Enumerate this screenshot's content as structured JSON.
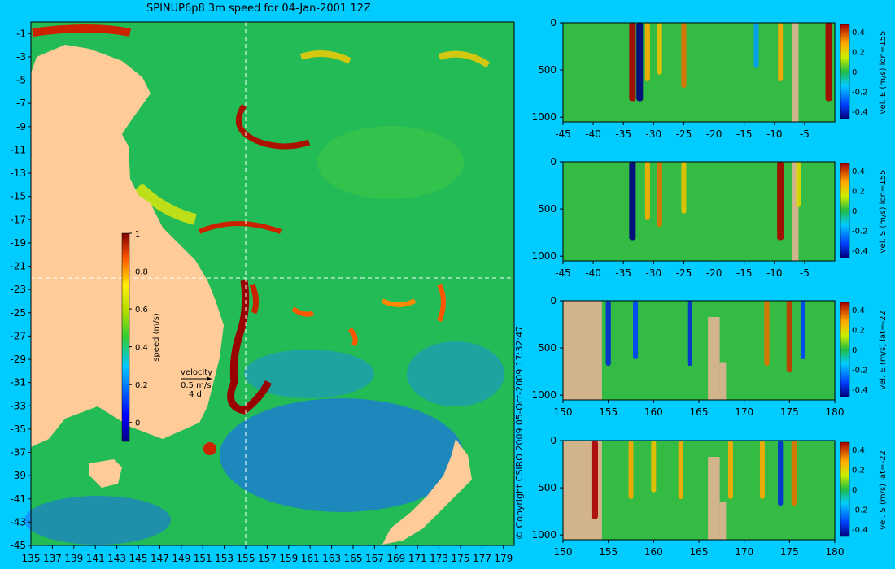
{
  "title": "SPINUP6p8 3m speed for 04-Jan-2001 12Z",
  "copyright": "© Copyright CSIRO 2009   05-Oct-2009 17:32:47",
  "colors": {
    "background": "#00ccff",
    "land": "#ffcc99",
    "section_land": "#d2b48c"
  },
  "chart_data": [
    {
      "type": "heatmap",
      "variable": "speed (m/s)",
      "x_ticks": [
        "135",
        "137",
        "139",
        "141",
        "143",
        "145",
        "147",
        "149",
        "151",
        "153",
        "155",
        "157",
        "159",
        "161",
        "163",
        "165",
        "167",
        "169",
        "171",
        "173",
        "175",
        "177",
        "179"
      ],
      "y_ticks": [
        "-1",
        "-3",
        "-5",
        "-7",
        "-9",
        "-11",
        "-13",
        "-15",
        "-17",
        "-19",
        "-21",
        "-23",
        "-25",
        "-27",
        "-29",
        "-31",
        "-33",
        "-35",
        "-37",
        "-39",
        "-41",
        "-43",
        "-45"
      ],
      "xlim": [
        135,
        180
      ],
      "ylim": [
        -45,
        0
      ],
      "crosshair": {
        "lon": 155,
        "lat": -22
      },
      "colorbar": {
        "label": "speed (m/s)",
        "ticks": [
          "0",
          "0.2",
          "0.4",
          "0.6",
          "0.8",
          "1"
        ],
        "range": [
          -0.1,
          1
        ]
      },
      "velocity_legend": {
        "title": "velocity",
        "scale": "0.5 m/s",
        "duration": "4 d"
      }
    },
    {
      "type": "heatmap",
      "section": "vel. E (m/s) lon=155",
      "x_ticks": [
        "-45",
        "-40",
        "-35",
        "-30",
        "-25",
        "-20",
        "-15",
        "-10",
        "-5"
      ],
      "y_ticks": [
        "0",
        "500",
        "1000"
      ],
      "xlim": [
        -45,
        0
      ],
      "ylim": [
        1050,
        0
      ],
      "colorbar_ticks": [
        "0.4",
        "0.2",
        "0",
        "-0.2",
        "-0.4"
      ],
      "features": [
        {
          "x": -33.5,
          "value": 0.45
        },
        {
          "x": -32.3,
          "value": -0.45
        },
        {
          "x": -31,
          "value": 0.3
        },
        {
          "x": -29,
          "value": 0.25
        },
        {
          "x": -25,
          "value": 0.35
        },
        {
          "x": -13,
          "value": -0.2
        },
        {
          "x": -9,
          "value": 0.3
        },
        {
          "x": -1,
          "value": 0.45
        }
      ]
    },
    {
      "type": "heatmap",
      "section": "vel. S (m/s) lon=155",
      "x_ticks": [
        "-45",
        "-40",
        "-35",
        "-30",
        "-25",
        "-20",
        "-15",
        "-10",
        "-5"
      ],
      "y_ticks": [
        "0",
        "500",
        "1000"
      ],
      "xlim": [
        -45,
        0
      ],
      "ylim": [
        1050,
        0
      ],
      "colorbar_ticks": [
        "0.4",
        "0.2",
        "0",
        "-0.2",
        "-0.4"
      ],
      "features": [
        {
          "x": -33.5,
          "value": -0.45
        },
        {
          "x": -31,
          "value": 0.3
        },
        {
          "x": -29,
          "value": 0.35
        },
        {
          "x": -25,
          "value": 0.25
        },
        {
          "x": -9,
          "value": 0.45
        },
        {
          "x": -6,
          "value": 0.2
        }
      ]
    },
    {
      "type": "heatmap",
      "section": "vel. E (m/s) lat=-22",
      "x_ticks": [
        "150",
        "155",
        "160",
        "165",
        "170",
        "175",
        "180"
      ],
      "y_ticks": [
        "0",
        "500",
        "1000"
      ],
      "xlim": [
        150,
        180
      ],
      "ylim": [
        1050,
        0
      ],
      "colorbar_ticks": [
        "0.4",
        "0.2",
        "0",
        "-0.2",
        "-0.4"
      ],
      "features": [
        {
          "x": 155,
          "value": -0.35
        },
        {
          "x": 158,
          "value": -0.3
        },
        {
          "x": 164,
          "value": -0.35
        },
        {
          "x": 172.5,
          "value": 0.35
        },
        {
          "x": 175,
          "value": 0.4
        },
        {
          "x": 176.5,
          "value": -0.3
        }
      ]
    },
    {
      "type": "heatmap",
      "section": "vel. S (m/s) lat=-22",
      "x_ticks": [
        "150",
        "155",
        "160",
        "165",
        "170",
        "175",
        "180"
      ],
      "y_ticks": [
        "0",
        "500",
        "1000"
      ],
      "xlim": [
        150,
        180
      ],
      "ylim": [
        1050,
        0
      ],
      "colorbar_ticks": [
        "0.4",
        "0.2",
        "0",
        "-0.2",
        "-0.4"
      ],
      "features": [
        {
          "x": 153.5,
          "value": 0.45
        },
        {
          "x": 157.5,
          "value": 0.3
        },
        {
          "x": 160,
          "value": 0.25
        },
        {
          "x": 163,
          "value": 0.3
        },
        {
          "x": 168.5,
          "value": 0.3
        },
        {
          "x": 172,
          "value": 0.3
        },
        {
          "x": 174,
          "value": -0.35
        },
        {
          "x": 175.5,
          "value": 0.35
        }
      ]
    }
  ]
}
